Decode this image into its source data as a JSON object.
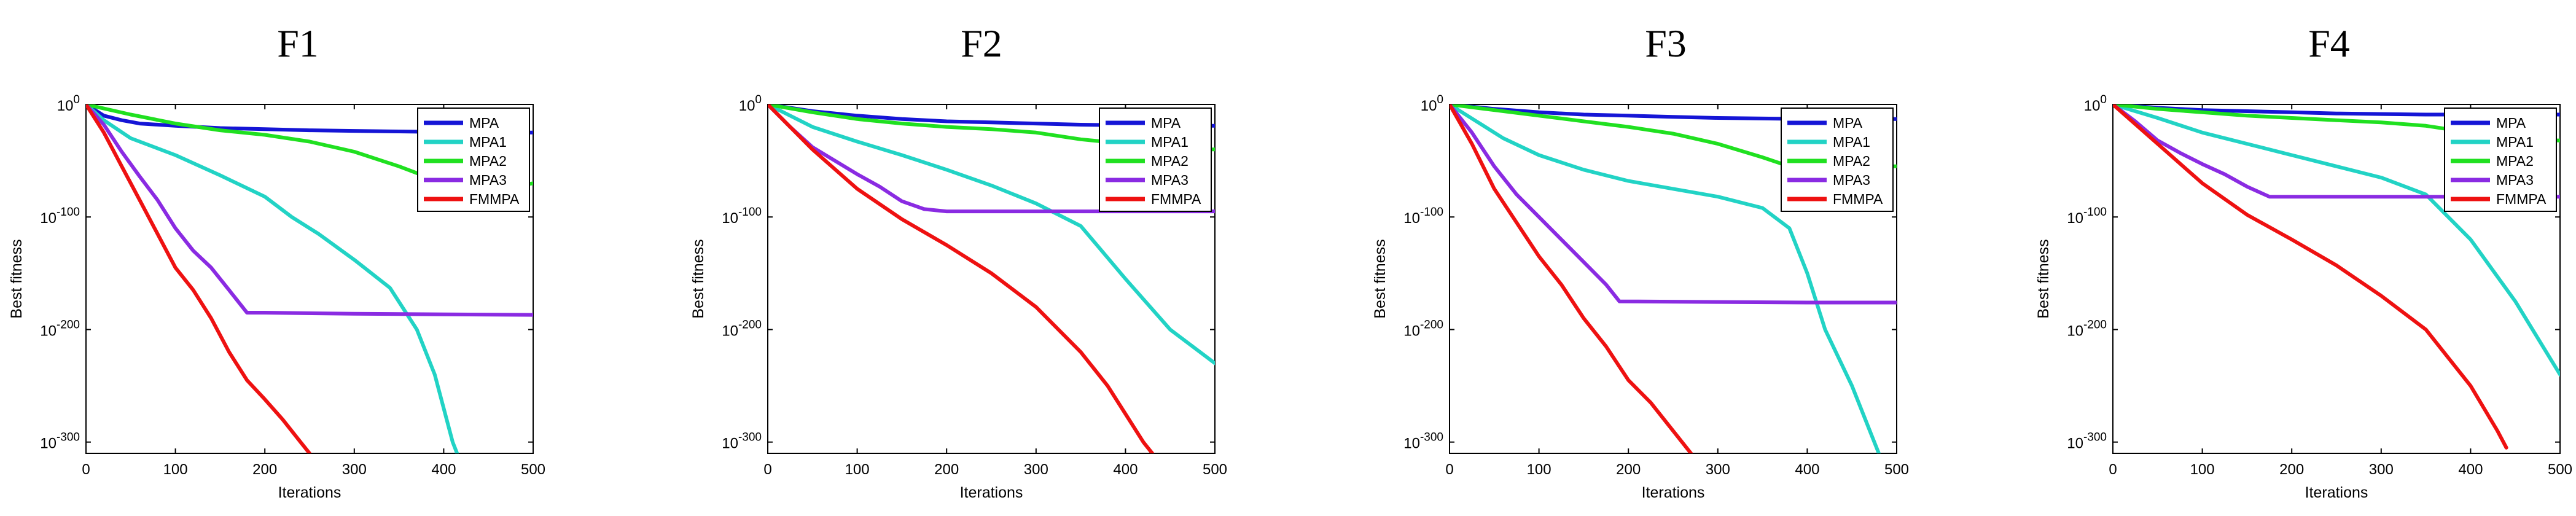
{
  "chart_data": [
    {
      "type": "line",
      "title": "F1",
      "xlabel": "Iterations",
      "ylabel": "Best fitness",
      "xlim": [
        0,
        500
      ],
      "ylim": [
        -310,
        0
      ],
      "yscale": "log10",
      "xticks": [
        "0",
        "100",
        "200",
        "300",
        "400",
        "500"
      ],
      "yticks": [
        {
          "value": 0,
          "base": "10",
          "exp": "0"
        },
        {
          "value": -100,
          "base": "10",
          "exp": "-100"
        },
        {
          "value": -200,
          "base": "10",
          "exp": "-200"
        },
        {
          "value": -300,
          "base": "10",
          "exp": "-300"
        }
      ],
      "legend_position": "top-right",
      "series": [
        {
          "name": "MPA",
          "color": "#1515d6",
          "x": [
            0,
            10,
            20,
            40,
            60,
            100,
            150,
            200,
            250,
            300,
            350,
            400,
            450,
            500
          ],
          "y": [
            0,
            -5,
            -10,
            -14,
            -17,
            -19,
            -21,
            -22,
            -23,
            -23.5,
            -24,
            -24.5,
            -25,
            -25
          ]
        },
        {
          "name": "MPA1",
          "color": "#22d3c5",
          "x": [
            0,
            20,
            50,
            100,
            150,
            200,
            230,
            260,
            300,
            340,
            370,
            390,
            400,
            410,
            415
          ],
          "y": [
            0,
            -14,
            -30,
            -45,
            -63,
            -82,
            -100,
            -115,
            -138,
            -163,
            -200,
            -240,
            -270,
            -300,
            -310
          ]
        },
        {
          "name": "MPA2",
          "color": "#20e020",
          "x": [
            0,
            50,
            100,
            150,
            200,
            250,
            300,
            350,
            400,
            450,
            500
          ],
          "y": [
            0,
            -9,
            -17,
            -23,
            -27,
            -33,
            -42,
            -55,
            -70,
            -77,
            -70
          ]
        },
        {
          "name": "MPA3",
          "color": "#8a2be2",
          "x": [
            0,
            20,
            40,
            60,
            80,
            100,
            120,
            140,
            160,
            180,
            200,
            300,
            400,
            500
          ],
          "y": [
            0,
            -18,
            -42,
            -64,
            -85,
            -110,
            -130,
            -145,
            -165,
            -185,
            -185,
            -186,
            -186.5,
            -187
          ]
        },
        {
          "name": "FMMPA",
          "color": "#ee1111",
          "x": [
            0,
            20,
            40,
            60,
            80,
            100,
            120,
            140,
            160,
            180,
            200,
            220,
            240,
            250
          ],
          "y": [
            0,
            -25,
            -55,
            -85,
            -115,
            -145,
            -165,
            -190,
            -220,
            -245,
            -262,
            -280,
            -300,
            -310
          ]
        }
      ]
    },
    {
      "type": "line",
      "title": "F2",
      "xlabel": "Iterations",
      "ylabel": "Best fitness",
      "xlim": [
        0,
        500
      ],
      "ylim": [
        -310,
        0
      ],
      "yscale": "log10",
      "xticks": [
        "0",
        "100",
        "200",
        "300",
        "400",
        "500"
      ],
      "yticks": [
        {
          "value": 0,
          "base": "10",
          "exp": "0"
        },
        {
          "value": -100,
          "base": "10",
          "exp": "-100"
        },
        {
          "value": -200,
          "base": "10",
          "exp": "-200"
        },
        {
          "value": -300,
          "base": "10",
          "exp": "-300"
        }
      ],
      "legend_position": "top-right",
      "series": [
        {
          "name": "MPA",
          "color": "#1515d6",
          "x": [
            0,
            50,
            100,
            150,
            200,
            250,
            300,
            350,
            400,
            450,
            500
          ],
          "y": [
            0,
            -6,
            -10,
            -13,
            -15,
            -16,
            -17,
            -18,
            -18.5,
            -19,
            -19
          ]
        },
        {
          "name": "MPA1",
          "color": "#22d3c5",
          "x": [
            0,
            50,
            100,
            150,
            200,
            250,
            300,
            350,
            400,
            450,
            500
          ],
          "y": [
            0,
            -20,
            -33,
            -45,
            -58,
            -72,
            -88,
            -108,
            -155,
            -200,
            -230
          ]
        },
        {
          "name": "MPA2",
          "color": "#20e020",
          "x": [
            0,
            50,
            100,
            150,
            200,
            250,
            300,
            350,
            400,
            450,
            500
          ],
          "y": [
            0,
            -7,
            -13,
            -17,
            -20,
            -22,
            -25,
            -31,
            -35,
            -40,
            -40
          ]
        },
        {
          "name": "MPA3",
          "color": "#8a2be2",
          "x": [
            0,
            25,
            50,
            75,
            100,
            125,
            150,
            175,
            200,
            300,
            400,
            500
          ],
          "y": [
            0,
            -20,
            -38,
            -50,
            -62,
            -73,
            -86,
            -93,
            -95,
            -95,
            -95,
            -95
          ]
        },
        {
          "name": "FMMPA",
          "color": "#ee1111",
          "x": [
            0,
            50,
            100,
            150,
            200,
            250,
            300,
            350,
            380,
            400,
            420,
            430
          ],
          "y": [
            0,
            -40,
            -75,
            -102,
            -125,
            -150,
            -180,
            -220,
            -250,
            -275,
            -300,
            -310
          ]
        }
      ]
    },
    {
      "type": "line",
      "title": "F3",
      "xlabel": "Iterations",
      "ylabel": "Best fitness",
      "xlim": [
        0,
        500
      ],
      "ylim": [
        -310,
        0
      ],
      "yscale": "log10",
      "xticks": [
        "0",
        "100",
        "200",
        "300",
        "400",
        "500"
      ],
      "yticks": [
        {
          "value": 0,
          "base": "10",
          "exp": "0"
        },
        {
          "value": -100,
          "base": "10",
          "exp": "-100"
        },
        {
          "value": -200,
          "base": "10",
          "exp": "-200"
        },
        {
          "value": -300,
          "base": "10",
          "exp": "-300"
        }
      ],
      "legend_position": "top-right",
      "series": [
        {
          "name": "MPA",
          "color": "#1515d6",
          "x": [
            0,
            50,
            100,
            150,
            200,
            250,
            300,
            350,
            400,
            450,
            500
          ],
          "y": [
            0,
            -4,
            -7,
            -9,
            -10,
            -11,
            -12,
            -12.5,
            -13,
            -13,
            -13
          ]
        },
        {
          "name": "MPA1",
          "color": "#22d3c5",
          "x": [
            0,
            30,
            60,
            100,
            150,
            200,
            250,
            300,
            350,
            380,
            400,
            420,
            450,
            470,
            480
          ],
          "y": [
            0,
            -15,
            -30,
            -45,
            -58,
            -68,
            -75,
            -82,
            -92,
            -110,
            -150,
            -200,
            -250,
            -290,
            -310
          ]
        },
        {
          "name": "MPA2",
          "color": "#20e020",
          "x": [
            0,
            50,
            100,
            150,
            200,
            250,
            300,
            350,
            380,
            400,
            450,
            500
          ],
          "y": [
            0,
            -5,
            -10,
            -15,
            -20,
            -26,
            -35,
            -47,
            -55,
            -55,
            -55,
            -55
          ]
        },
        {
          "name": "MPA3",
          "color": "#8a2be2",
          "x": [
            0,
            25,
            50,
            75,
            100,
            125,
            150,
            175,
            190,
            300,
            400,
            500
          ],
          "y": [
            0,
            -25,
            -55,
            -80,
            -100,
            -120,
            -140,
            -160,
            -175,
            -175.5,
            -176,
            -176
          ]
        },
        {
          "name": "FMMPA",
          "color": "#ee1111",
          "x": [
            0,
            25,
            50,
            75,
            100,
            125,
            150,
            175,
            200,
            225,
            250,
            270
          ],
          "y": [
            0,
            -35,
            -75,
            -105,
            -135,
            -160,
            -190,
            -215,
            -245,
            -265,
            -290,
            -310
          ]
        }
      ]
    },
    {
      "type": "line",
      "title": "F4",
      "xlabel": "Iterations",
      "ylabel": "Best fitness",
      "xlim": [
        0,
        500
      ],
      "ylim": [
        -310,
        0
      ],
      "yscale": "log10",
      "xticks": [
        "0",
        "100",
        "200",
        "300",
        "400",
        "500"
      ],
      "yticks": [
        {
          "value": 0,
          "base": "10",
          "exp": "0"
        },
        {
          "value": -100,
          "base": "10",
          "exp": "-100"
        },
        {
          "value": -200,
          "base": "10",
          "exp": "-200"
        },
        {
          "value": -300,
          "base": "10",
          "exp": "-300"
        }
      ],
      "legend_position": "top-right",
      "series": [
        {
          "name": "MPA",
          "color": "#1515d6",
          "x": [
            0,
            50,
            100,
            150,
            200,
            250,
            300,
            350,
            400,
            450,
            500
          ],
          "y": [
            0,
            -3,
            -5,
            -6,
            -7,
            -8,
            -8.5,
            -9,
            -9,
            -9,
            -9
          ]
        },
        {
          "name": "MPA1",
          "color": "#22d3c5",
          "x": [
            0,
            50,
            100,
            150,
            200,
            250,
            300,
            350,
            400,
            450,
            500
          ],
          "y": [
            0,
            -12,
            -25,
            -35,
            -45,
            -55,
            -65,
            -80,
            -120,
            -175,
            -240
          ]
        },
        {
          "name": "MPA2",
          "color": "#20e020",
          "x": [
            0,
            50,
            100,
            150,
            200,
            250,
            300,
            350,
            400,
            450,
            500
          ],
          "y": [
            0,
            -4,
            -7,
            -10,
            -12,
            -14,
            -16,
            -19,
            -25,
            -32,
            -32
          ]
        },
        {
          "name": "MPA3",
          "color": "#8a2be2",
          "x": [
            0,
            25,
            50,
            75,
            100,
            125,
            150,
            175,
            200,
            300,
            400,
            500
          ],
          "y": [
            0,
            -15,
            -32,
            -43,
            -53,
            -62,
            -73,
            -82,
            -82,
            -82,
            -82,
            -82
          ]
        },
        {
          "name": "FMMPA",
          "color": "#ee1111",
          "x": [
            0,
            50,
            100,
            150,
            200,
            250,
            300,
            350,
            400,
            430,
            440
          ],
          "y": [
            0,
            -35,
            -70,
            -98,
            -120,
            -143,
            -170,
            -200,
            -250,
            -290,
            -305
          ]
        }
      ]
    }
  ]
}
